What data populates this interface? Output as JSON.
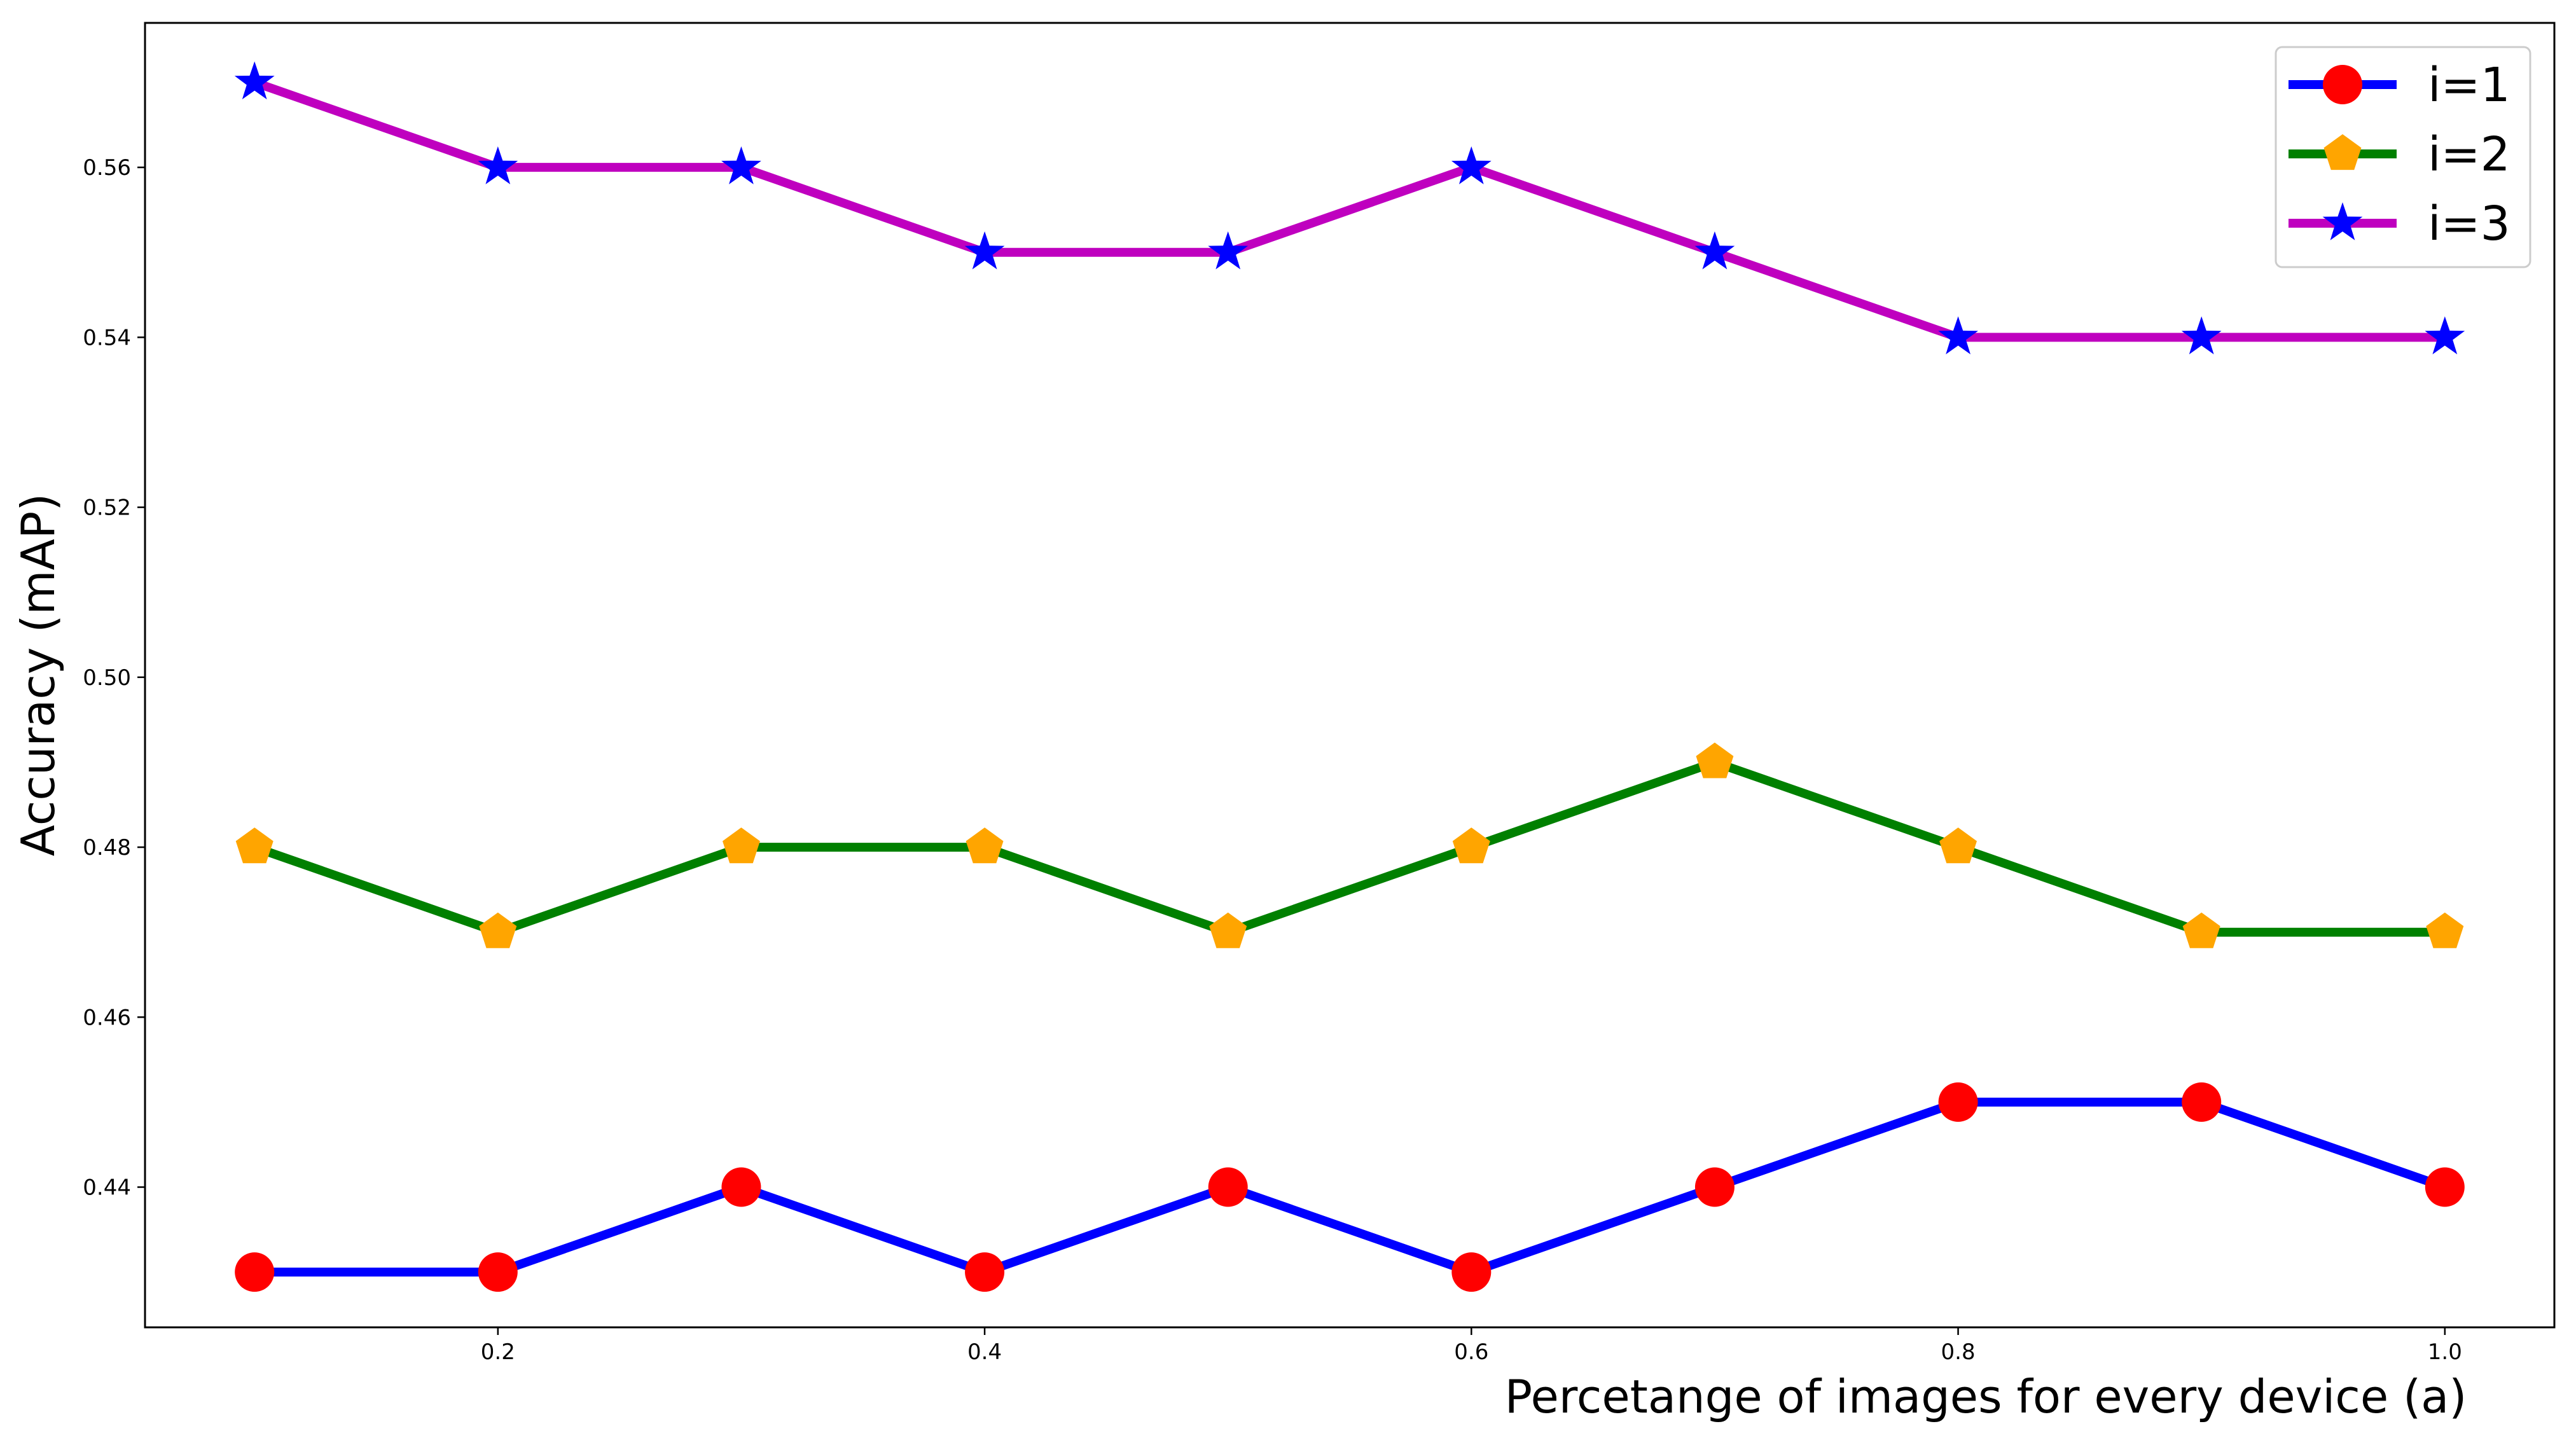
{
  "chart_data": {
    "type": "line",
    "xlabel": "Percetange of images for every device (a)",
    "ylabel": "Accuracy (mAP)",
    "x": [
      0.1,
      0.2,
      0.3,
      0.4,
      0.5,
      0.6,
      0.7,
      0.8,
      0.9,
      1.0
    ],
    "xticks": [
      "0.2",
      "0.4",
      "0.6",
      "0.8",
      "1.0"
    ],
    "yticks": [
      "0.44",
      "0.46",
      "0.48",
      "0.50",
      "0.52",
      "0.54",
      "0.56"
    ],
    "xlim": [
      0.055,
      1.045
    ],
    "ylim": [
      0.4235,
      0.577
    ],
    "grid": false,
    "legend_position": "top-right",
    "series": [
      {
        "name": "i=1",
        "values": [
          0.43,
          0.43,
          0.44,
          0.43,
          0.44,
          0.43,
          0.44,
          0.45,
          0.45,
          0.44
        ],
        "line_color": "#0000ff",
        "marker": "circle",
        "marker_color": "#ff0000"
      },
      {
        "name": "i=2",
        "values": [
          0.48,
          0.47,
          0.48,
          0.48,
          0.47,
          0.48,
          0.49,
          0.48,
          0.47,
          0.47
        ],
        "line_color": "#008000",
        "marker": "pentagon",
        "marker_color": "#ffa500"
      },
      {
        "name": "i=3",
        "values": [
          0.57,
          0.56,
          0.56,
          0.55,
          0.55,
          0.56,
          0.55,
          0.54,
          0.54,
          0.54
        ],
        "line_color": "#bf00bf",
        "marker": "star",
        "marker_color": "#0000ff"
      }
    ]
  }
}
